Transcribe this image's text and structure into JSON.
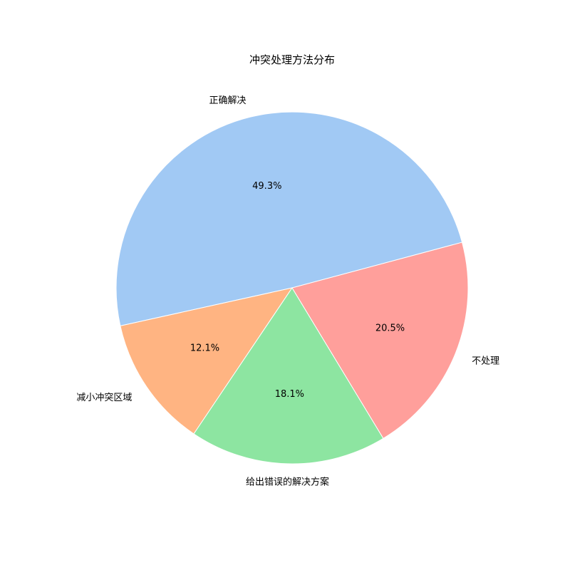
{
  "chart_data": {
    "type": "pie",
    "title": "冲突处理方法分布",
    "categories": [
      "正确解决",
      "减小冲突区域",
      "给出错误的解决方案",
      "不处理"
    ],
    "values": [
      49.3,
      12.1,
      18.1,
      20.5
    ],
    "percent_labels": [
      "49.3%",
      "12.1%",
      "18.1%",
      "20.5%"
    ],
    "colors": [
      "#A1C9F4",
      "#FFB482",
      "#8DE5A1",
      "#FF9F9B"
    ],
    "start_angle_deg": 15,
    "direction": "counterclockwise",
    "legend": "none"
  }
}
